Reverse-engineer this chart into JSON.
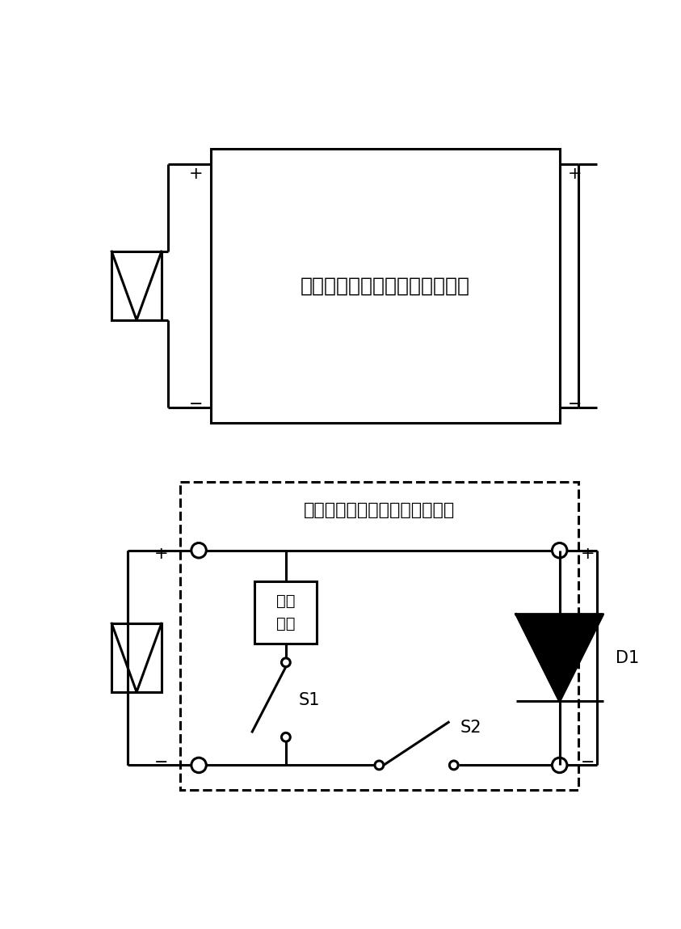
{
  "bg_color": "#ffffff",
  "line_color": "#000000",
  "fig_width": 8.43,
  "fig_height": 11.49,
  "top_label": "光伏组件输出特性曲线获取电路",
  "bottom_label": "光伏组件输出特性曲线获取电路",
  "buffer_label1": "缓冲",
  "buffer_label2": "电路",
  "d1_label": "D1",
  "s1_label": "S1",
  "s2_label": "S2",
  "font_size_main": 18,
  "font_size_sym": 15,
  "font_size_switch": 15,
  "lw": 2.2
}
